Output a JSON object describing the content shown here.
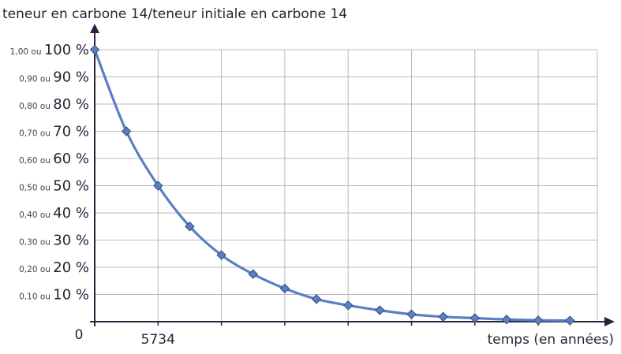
{
  "chart_data": {
    "type": "line",
    "title": "teneur en carbone 14/teneur initiale en carbone 14",
    "xlabel": "temps (en années)",
    "ylabel": "",
    "origin_label": "0",
    "x_tick_labels": [
      "5734"
    ],
    "y_ticks": [
      {
        "value": 1.0,
        "fraction_label": "1,00 ou",
        "percent_label": "100 %"
      },
      {
        "value": 0.9,
        "fraction_label": "0,90 ou",
        "percent_label": "90 %"
      },
      {
        "value": 0.8,
        "fraction_label": "0,80 ou",
        "percent_label": "80 %"
      },
      {
        "value": 0.7,
        "fraction_label": "0,70 ou",
        "percent_label": "70 %"
      },
      {
        "value": 0.6,
        "fraction_label": "0,60 ou",
        "percent_label": "60 %"
      },
      {
        "value": 0.5,
        "fraction_label": "0,50 ou",
        "percent_label": "50 %"
      },
      {
        "value": 0.4,
        "fraction_label": "0,40 ou",
        "percent_label": "40 %"
      },
      {
        "value": 0.3,
        "fraction_label": "0,30 ou",
        "percent_label": "30 %"
      },
      {
        "value": 0.2,
        "fraction_label": "0,20 ou",
        "percent_label": "20 %"
      },
      {
        "value": 0.1,
        "fraction_label": "0,10 ou",
        "percent_label": "10 %"
      }
    ],
    "xlim": [
      0,
      46000
    ],
    "ylim": [
      0,
      1.0
    ],
    "grid": true,
    "x_grid_step": 5734,
    "series": [
      {
        "x": [
          0,
          2867,
          5734,
          8601,
          11468,
          14335,
          17202,
          20069,
          22936,
          25803,
          28670,
          31537,
          34404,
          37271,
          40138,
          43005
        ],
        "y": [
          1.0,
          0.7,
          0.5,
          0.35,
          0.245,
          0.175,
          0.122,
          0.083,
          0.06,
          0.042,
          0.027,
          0.018,
          0.013,
          0.008,
          0.005,
          0.004
        ],
        "color": "#5b7fc2",
        "marker": "diamond",
        "smooth": true
      }
    ]
  }
}
